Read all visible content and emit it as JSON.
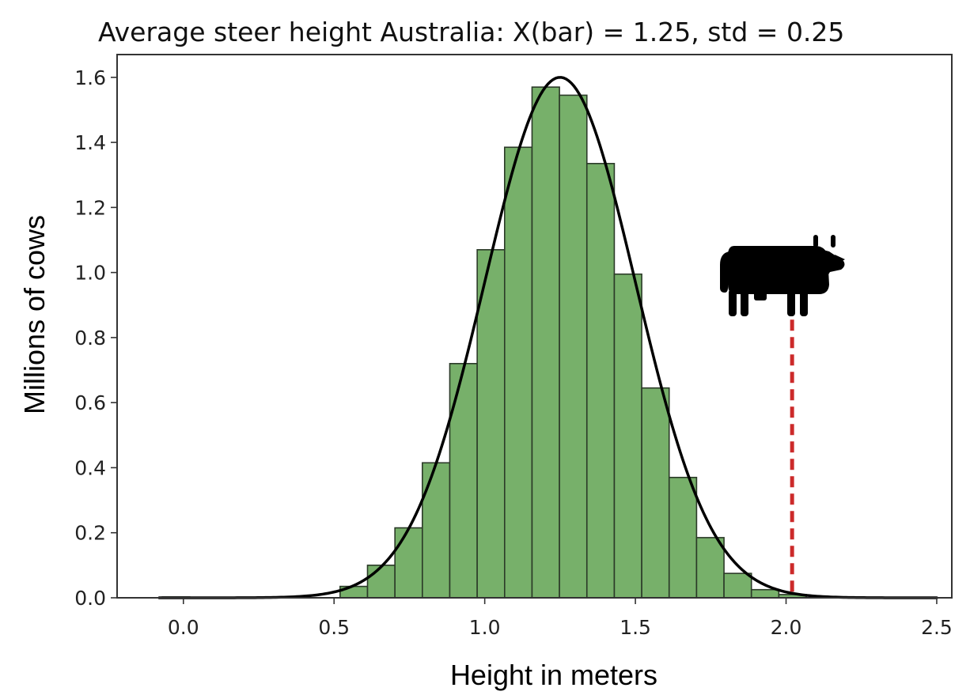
{
  "chart_data": {
    "type": "bar",
    "title": "Average steer height Australia: X(bar) = 1.25,  std = 0.25",
    "xlabel": "Height in meters",
    "ylabel": "Millions of cows",
    "xlim": [
      -0.22,
      2.55
    ],
    "ylim": [
      0,
      1.67
    ],
    "xticks": [
      0.0,
      0.5,
      1.0,
      1.5,
      2.0,
      2.5
    ],
    "xtick_labels": [
      "0.0",
      "0.5",
      "1.0",
      "1.5",
      "2.0",
      "2.5"
    ],
    "yticks": [
      0.0,
      0.2,
      0.4,
      0.6,
      0.8,
      1.0,
      1.2,
      1.4,
      1.6
    ],
    "ytick_labels": [
      "0.0",
      "0.2",
      "0.4",
      "0.6",
      "0.8",
      "1.0",
      "1.2",
      "1.4",
      "1.6"
    ],
    "grid": false,
    "bin_width": 0.091,
    "bins": [
      {
        "x0": -0.07,
        "value": 0.0
      },
      {
        "x0": 0.52,
        "value": 0.035
      },
      {
        "x0": 0.611,
        "value": 0.1
      },
      {
        "x0": 0.702,
        "value": 0.215
      },
      {
        "x0": 0.793,
        "value": 0.415
      },
      {
        "x0": 0.884,
        "value": 0.72
      },
      {
        "x0": 0.975,
        "value": 1.07
      },
      {
        "x0": 1.066,
        "value": 1.385
      },
      {
        "x0": 1.157,
        "value": 1.57
      },
      {
        "x0": 1.248,
        "value": 1.545
      },
      {
        "x0": 1.339,
        "value": 1.335
      },
      {
        "x0": 1.43,
        "value": 0.995
      },
      {
        "x0": 1.521,
        "value": 0.645
      },
      {
        "x0": 1.612,
        "value": 0.37
      },
      {
        "x0": 1.703,
        "value": 0.185
      },
      {
        "x0": 1.794,
        "value": 0.075
      },
      {
        "x0": 1.885,
        "value": 0.025
      },
      {
        "x0": 1.976,
        "value": 0.01
      }
    ],
    "pdf_curve": {
      "mean": 1.25,
      "std": 0.25,
      "peak": 1.6,
      "x_range": [
        -0.08,
        2.5
      ]
    },
    "marker_line": {
      "x": 2.02,
      "y_top": 0.855
    },
    "colors": {
      "bar_fill": "#77b06a",
      "bar_edge": "#2b3a28",
      "curve": "#000000",
      "marker": "#cc2a2a",
      "axes": "#333333"
    },
    "icon": "cow-icon"
  }
}
